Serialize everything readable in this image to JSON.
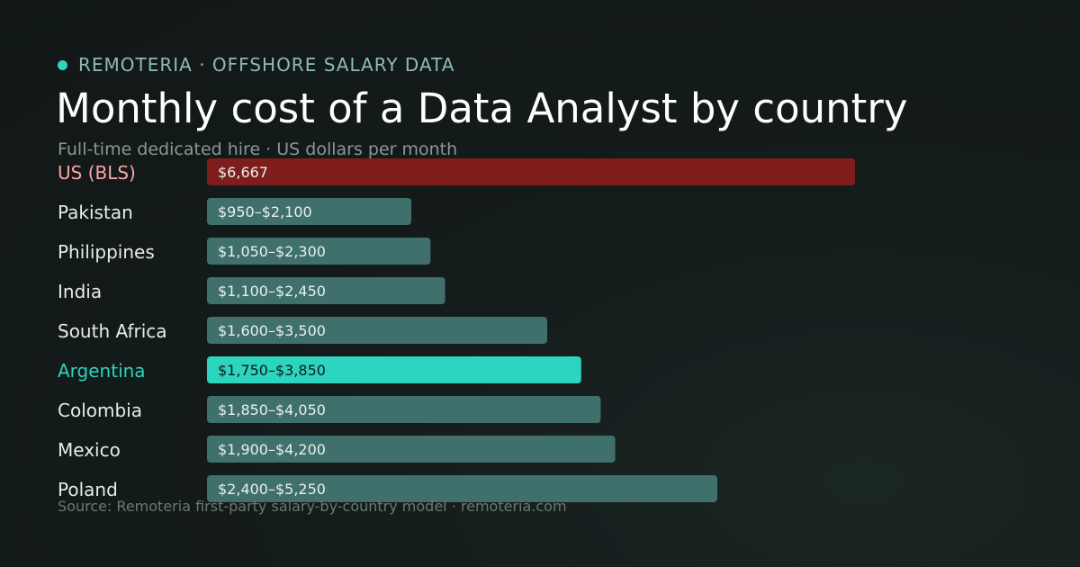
{
  "header": {
    "brand": "REMOTERIA · OFFSHORE SALARY DATA",
    "title": "Monthly cost of a Data Analyst by country",
    "subtitle": "Full-time dedicated hire · US dollars per month"
  },
  "footer": {
    "source": "Source: Remoteria first-party salary-by-country model · remoteria.com"
  },
  "colors": {
    "accent": "#2dd4bf",
    "baseline_bar": "#7f1d1d",
    "baseline_label": "#fca5a5",
    "default_bar": "#40706b",
    "default_label": "#e6ecea",
    "highlight_label": "#2dd4bf",
    "bar_text": "#e8efed",
    "highlight_bar_text": "#0f1a19"
  },
  "chart_data": {
    "type": "bar",
    "orientation": "horizontal",
    "units": "USD per month",
    "title": "Monthly cost of a Data Analyst by country",
    "subtitle": "Full-time dedicated hire · US dollars per month",
    "xlim": [
      0,
      6667
    ],
    "grid": false,
    "legend": "none",
    "categories": [
      "US (BLS)",
      "Pakistan",
      "Philippines",
      "India",
      "South Africa",
      "Argentina",
      "Colombia",
      "Mexico",
      "Poland"
    ],
    "bars": [
      {
        "category": "US (BLS)",
        "label": "$6,667",
        "low": 6667,
        "high": 6667,
        "style": "baseline"
      },
      {
        "category": "Pakistan",
        "label": "$950–$2,100",
        "low": 950,
        "high": 2100,
        "style": "default"
      },
      {
        "category": "Philippines",
        "label": "$1,050–$2,300",
        "low": 1050,
        "high": 2300,
        "style": "default"
      },
      {
        "category": "India",
        "label": "$1,100–$2,450",
        "low": 1100,
        "high": 2450,
        "style": "default"
      },
      {
        "category": "South Africa",
        "label": "$1,600–$3,500",
        "low": 1600,
        "high": 3500,
        "style": "default"
      },
      {
        "category": "Argentina",
        "label": "$1,750–$3,850",
        "low": 1750,
        "high": 3850,
        "style": "highlight"
      },
      {
        "category": "Colombia",
        "label": "$1,850–$4,050",
        "low": 1850,
        "high": 4050,
        "style": "default"
      },
      {
        "category": "Mexico",
        "label": "$1,900–$4,200",
        "low": 1900,
        "high": 4200,
        "style": "default"
      },
      {
        "category": "Poland",
        "label": "$2,400–$5,250",
        "low": 2400,
        "high": 5250,
        "style": "default"
      }
    ]
  }
}
